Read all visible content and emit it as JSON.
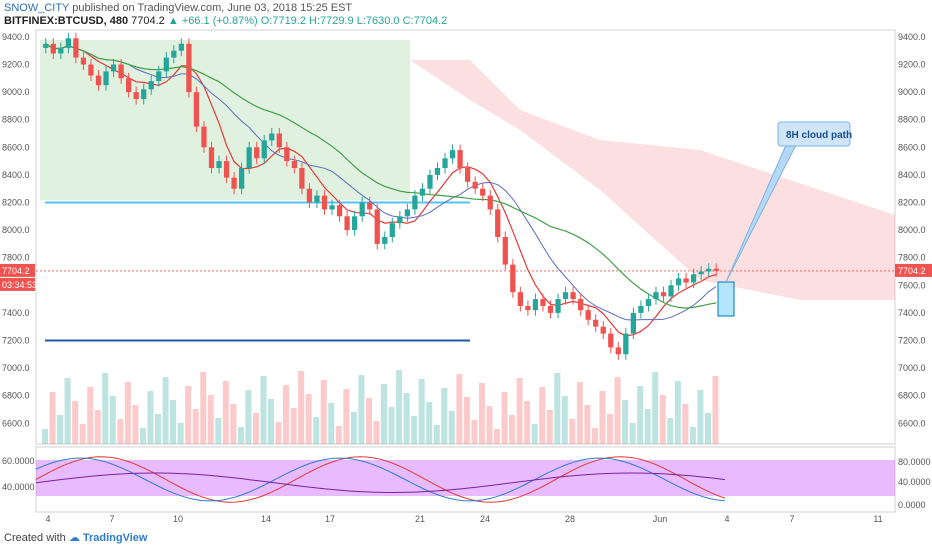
{
  "header": {
    "author": "SNOW_CITY",
    "published": "published on TradingView.com, June 03, 2018 15:25 EST",
    "symbol": "BITFINEX:BTCUSD, 480",
    "last": "7704.2",
    "change": "+66.1 (+0.87%)",
    "ohlc": "O:7719.2  H:7729.9  L:7630.0  C:7704.2"
  },
  "footer": {
    "created_with": "Created with",
    "brand": "TradingView"
  },
  "colors": {
    "up": "#26a69a",
    "down": "#ef5350",
    "cloud_green": "#a5d6a7",
    "cloud_red": "#f8bbbd",
    "rsi_band": "#cc66ff",
    "accent_line": "#2d6fb7"
  },
  "annotation": {
    "label": "8H cloud path"
  },
  "axes": {
    "price_ticks": [
      "9400.0",
      "9200.0",
      "9000.0",
      "8800.0",
      "8600.0",
      "8400.0",
      "8200.0",
      "8000.0",
      "7800.0",
      "7600.0",
      "7400.0",
      "7200.0",
      "7000.0",
      "6800.0",
      "6600.0"
    ],
    "osc_left_ticks": [
      "60.0000",
      "40.0000"
    ],
    "osc_right_ticks": [
      "80.0000",
      "40.0000",
      "0.0000"
    ],
    "x_ticks": [
      "4",
      "7",
      "10",
      "14",
      "17",
      "21",
      "24",
      "28",
      "Jun",
      "4",
      "7",
      "11"
    ],
    "current_price": "7704.2",
    "countdown": "03:34:53"
  },
  "chart_data": {
    "type": "candlestick",
    "symbol": "BITFINEX:BTCUSD",
    "interval": "480",
    "ylim": [
      6450,
      9450
    ],
    "last_price": 7704.2,
    "candles_close": [
      9350,
      9280,
      9320,
      9390,
      9250,
      9200,
      9120,
      9050,
      9150,
      9200,
      9100,
      9000,
      8950,
      9020,
      9080,
      9150,
      9250,
      9300,
      9350,
      9000,
      8750,
      8600,
      8450,
      8500,
      8380,
      8300,
      8450,
      8600,
      8520,
      8650,
      8700,
      8600,
      8500,
      8450,
      8300,
      8200,
      8250,
      8150,
      8180,
      8100,
      8000,
      8100,
      8200,
      8150,
      7900,
      7950,
      8050,
      8100,
      8150,
      8250,
      8300,
      8400,
      8450,
      8520,
      8580,
      8450,
      8350,
      8300,
      8250,
      8150,
      7950,
      7750,
      7550,
      7450,
      7420,
      7500,
      7450,
      7400,
      7500,
      7550,
      7500,
      7420,
      7350,
      7300,
      7250,
      7150,
      7100,
      7250,
      7400,
      7450,
      7500,
      7550,
      7520,
      7600,
      7650,
      7620,
      7680,
      7700,
      7720,
      7704
    ],
    "oscillator": {
      "left_range": [
        25,
        75
      ],
      "right_range": [
        0,
        100
      ],
      "band": [
        20,
        80
      ]
    }
  }
}
